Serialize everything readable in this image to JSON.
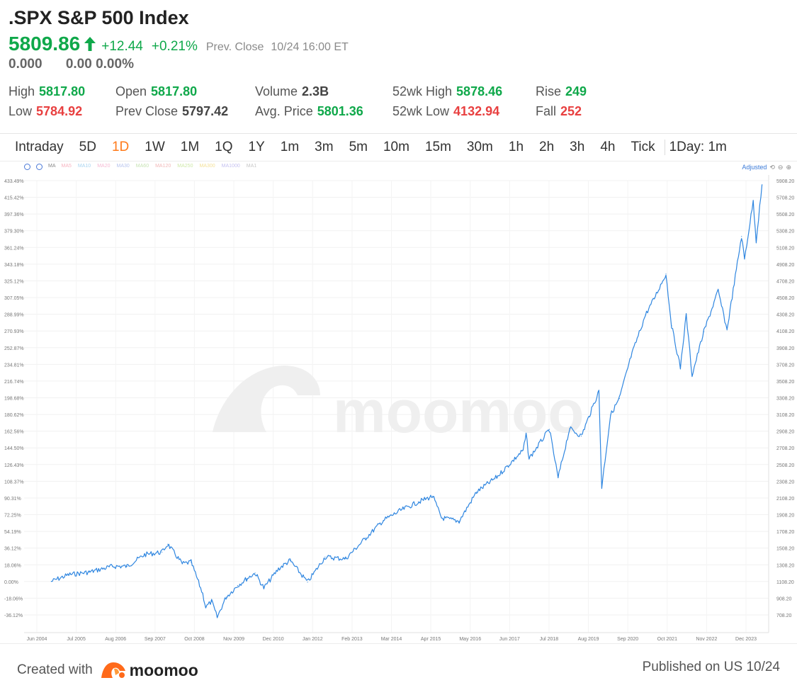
{
  "header": {
    "title": ".SPX S&P 500 Index",
    "price": "5809.86",
    "change": "+12.44",
    "change_pct": "+0.21%",
    "prev_label": "Prev.  Close",
    "prev_time": "10/24 16:00 ET",
    "ah_value": "0.000",
    "ah_change": "0.00 0.00%",
    "up_color": "#0fa84a",
    "down_color": "#e84040"
  },
  "stats": {
    "high_label": "High",
    "high": "5817.80",
    "low_label": "Low",
    "low": "5784.92",
    "open_label": "Open",
    "open": "5817.80",
    "prev_close_label": "Prev Close",
    "prev_close": "5797.42",
    "volume_label": "Volume",
    "volume": "2.3B",
    "avg_price_label": "Avg. Price",
    "avg_price": "5801.36",
    "wk52_high_label": "52wk High",
    "wk52_high": "5878.46",
    "wk52_low_label": "52wk Low",
    "wk52_low": "4132.94",
    "rise_label": "Rise",
    "rise": "249",
    "fall_label": "Fall",
    "fall": "252"
  },
  "tabs": [
    "Intraday",
    "5D",
    "1D",
    "1W",
    "1M",
    "1Q",
    "1Y",
    "1m",
    "3m",
    "5m",
    "10m",
    "15m",
    "30m",
    "1h",
    "2h",
    "3h",
    "4h",
    "Tick"
  ],
  "active_tab": "1D",
  "interval_label": "1Day: 1m",
  "chart_tools": {
    "ma_label": "MA",
    "indicators": [
      "MA5",
      "MA10",
      "MA20",
      "MA30",
      "MA60",
      "MA120",
      "MA250",
      "MA300",
      "MA1000",
      "MA1"
    ],
    "adjust_label": "Adjusted"
  },
  "chart_data": {
    "type": "line",
    "series_color": "#2f86e0",
    "watermark": "moomoo",
    "x_ticks": [
      "Jun 2004",
      "Jul 2005",
      "Aug 2006",
      "Sep 2007",
      "Oct 2008",
      "Nov 2009",
      "Dec 2010",
      "Jan 2012",
      "Feb 2013",
      "Mar 2014",
      "Apr 2015",
      "May 2016",
      "Jun 2017",
      "Jul 2018",
      "Aug 2019",
      "Sep 2020",
      "Oct 2021",
      "Nov 2022",
      "Dec 2023"
    ],
    "y_left_ticks": [
      "433.49%",
      "415.42%",
      "397.36%",
      "379.30%",
      "361.24%",
      "343.18%",
      "325.12%",
      "307.05%",
      "288.99%",
      "270.93%",
      "252.87%",
      "234.81%",
      "216.74%",
      "198.68%",
      "180.62%",
      "162.56%",
      "144.50%",
      "126.43%",
      "108.37%",
      "90.31%",
      "72.25%",
      "54.19%",
      "36.12%",
      "18.06%",
      "0.00%",
      "-18.06%",
      "-36.12%"
    ],
    "y_right_ticks": [
      "5908.20",
      "5708.20",
      "5508.20",
      "5308.20",
      "5108.20",
      "4908.20",
      "4708.20",
      "4508.20",
      "4308.20",
      "4108.20",
      "3908.20",
      "3708.20",
      "3508.20",
      "3308.20",
      "3108.20",
      "2908.20",
      "2708.20",
      "2508.20",
      "2308.20",
      "2108.20",
      "1908.20",
      "1708.20",
      "1508.20",
      "1308.20",
      "1108.20",
      "908.20",
      "708.20"
    ],
    "ylim_right": [
      708.2,
      5908.2
    ],
    "ylim_left_pct": [
      -36.12,
      433.49
    ],
    "points": [
      {
        "x": "2004-06",
        "y": 1110
      },
      {
        "x": "2004-12",
        "y": 1190
      },
      {
        "x": "2005-07",
        "y": 1220
      },
      {
        "x": "2006-03",
        "y": 1290
      },
      {
        "x": "2006-08",
        "y": 1290
      },
      {
        "x": "2007-02",
        "y": 1430
      },
      {
        "x": "2007-08",
        "y": 1460
      },
      {
        "x": "2007-10",
        "y": 1555
      },
      {
        "x": "2008-03",
        "y": 1320
      },
      {
        "x": "2008-06",
        "y": 1340
      },
      {
        "x": "2008-10",
        "y": 960
      },
      {
        "x": "2008-11",
        "y": 800
      },
      {
        "x": "2009-01",
        "y": 870
      },
      {
        "x": "2009-03",
        "y": 680
      },
      {
        "x": "2009-06",
        "y": 920
      },
      {
        "x": "2009-10",
        "y": 1060
      },
      {
        "x": "2010-01",
        "y": 1140
      },
      {
        "x": "2010-04",
        "y": 1210
      },
      {
        "x": "2010-07",
        "y": 1030
      },
      {
        "x": "2010-12",
        "y": 1260
      },
      {
        "x": "2011-04",
        "y": 1360
      },
      {
        "x": "2011-10",
        "y": 1100
      },
      {
        "x": "2012-04",
        "y": 1400
      },
      {
        "x": "2012-11",
        "y": 1380
      },
      {
        "x": "2013-06",
        "y": 1630
      },
      {
        "x": "2013-12",
        "y": 1840
      },
      {
        "x": "2014-06",
        "y": 1960
      },
      {
        "x": "2014-12",
        "y": 2060
      },
      {
        "x": "2015-05",
        "y": 2130
      },
      {
        "x": "2015-08",
        "y": 1870
      },
      {
        "x": "2016-02",
        "y": 1830
      },
      {
        "x": "2016-08",
        "y": 2180
      },
      {
        "x": "2017-03",
        "y": 2360
      },
      {
        "x": "2017-12",
        "y": 2680
      },
      {
        "x": "2018-01",
        "y": 2870
      },
      {
        "x": "2018-02",
        "y": 2580
      },
      {
        "x": "2018-09",
        "y": 2930
      },
      {
        "x": "2018-12",
        "y": 2350
      },
      {
        "x": "2019-04",
        "y": 2940
      },
      {
        "x": "2019-08",
        "y": 2850
      },
      {
        "x": "2020-02",
        "y": 3390
      },
      {
        "x": "2020-03",
        "y": 2240
      },
      {
        "x": "2020-06",
        "y": 3100
      },
      {
        "x": "2020-09",
        "y": 3300
      },
      {
        "x": "2021-01",
        "y": 3800
      },
      {
        "x": "2021-06",
        "y": 4300
      },
      {
        "x": "2021-09",
        "y": 4500
      },
      {
        "x": "2022-01",
        "y": 4790
      },
      {
        "x": "2022-03",
        "y": 4170
      },
      {
        "x": "2022-06",
        "y": 3670
      },
      {
        "x": "2022-08",
        "y": 4300
      },
      {
        "x": "2022-10",
        "y": 3580
      },
      {
        "x": "2023-02",
        "y": 4100
      },
      {
        "x": "2023-07",
        "y": 4590
      },
      {
        "x": "2023-10",
        "y": 4120
      },
      {
        "x": "2024-03",
        "y": 5240
      },
      {
        "x": "2024-04",
        "y": 4970
      },
      {
        "x": "2024-07",
        "y": 5660
      },
      {
        "x": "2024-08",
        "y": 5190
      },
      {
        "x": "2024-10",
        "y": 5860
      }
    ]
  },
  "footer": {
    "created_with": "Created with",
    "brand": "moomoo",
    "published": "Published on US 10/24"
  }
}
